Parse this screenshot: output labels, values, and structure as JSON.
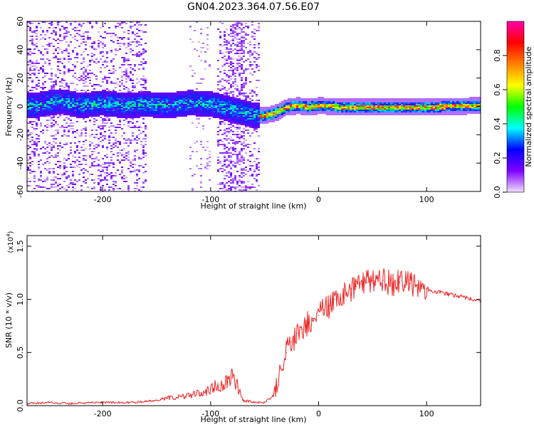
{
  "title": "GN04.2023.364.07.56.E07",
  "chart_data": [
    {
      "type": "heatmap",
      "xlabel": "Height of straight line (km)",
      "ylabel": "Frequency (Hz)",
      "xlim": [
        -270,
        150
      ],
      "ylim": [
        -60,
        60
      ],
      "xticks": [
        -200,
        -100,
        0,
        100
      ],
      "yticks": [
        -60,
        -40,
        -20,
        0,
        20,
        40,
        60
      ],
      "grid": false,
      "colorbar": {
        "label": "Normalized spectral amplitude",
        "range": [
          0,
          1
        ],
        "ticks": [
          0.0,
          0.2,
          0.4,
          0.6,
          0.8
        ],
        "colors": [
          "#f0e0ff",
          "#7f00ff",
          "#0000ff",
          "#00ffff",
          "#00ff00",
          "#ffff00",
          "#ff8000",
          "#ff0000",
          "#ff00aa"
        ]
      },
      "ridge": {
        "x": [
          -260,
          -240,
          -220,
          -200,
          -180,
          -160,
          -140,
          -120,
          -100,
          -80,
          -70,
          -60,
          -50,
          -40,
          -30,
          -20,
          -10,
          0,
          20,
          50,
          100,
          150
        ],
        "y": [
          2,
          4,
          1,
          3,
          1,
          2,
          1,
          3,
          2,
          -2,
          -4,
          -6,
          -6,
          -4,
          0,
          1,
          0,
          1,
          0,
          0,
          0,
          1
        ]
      }
    },
    {
      "type": "line",
      "xlabel": "Height of straight line (km)",
      "ylabel": "SNR (10 * v/v)",
      "multiplier": "(x10",
      "multiplier_exp": "4",
      "multiplier_close": ")",
      "xlim": [
        -270,
        150
      ],
      "ylim": [
        0,
        1.6
      ],
      "xticks": [
        -200,
        -100,
        0,
        100
      ],
      "yticks": [
        0.0,
        0.5,
        1.0,
        1.5
      ],
      "line_color": "#ee2222",
      "grid": false,
      "x": [
        -270,
        -250,
        -230,
        -210,
        -190,
        -170,
        -150,
        -140,
        -120,
        -110,
        -100,
        -90,
        -80,
        -75,
        -70,
        -60,
        -50,
        -45,
        -40,
        -35,
        -30,
        -25,
        -20,
        -15,
        -10,
        -5,
        0,
        5,
        10,
        15,
        20,
        25,
        30,
        35,
        40,
        45,
        50,
        55,
        60,
        65,
        70,
        75,
        80,
        85,
        90,
        95,
        100,
        110,
        120,
        130,
        140,
        150
      ],
      "y": [
        0.02,
        0.03,
        0.02,
        0.03,
        0.03,
        0.03,
        0.05,
        0.07,
        0.09,
        0.12,
        0.16,
        0.2,
        0.26,
        0.18,
        0.05,
        0.03,
        0.03,
        0.06,
        0.16,
        0.35,
        0.5,
        0.6,
        0.68,
        0.72,
        0.78,
        0.82,
        0.85,
        0.9,
        0.94,
        1.0,
        1.05,
        1.08,
        1.1,
        1.12,
        1.15,
        1.16,
        1.15,
        1.17,
        1.18,
        1.16,
        1.15,
        1.16,
        1.14,
        1.15,
        1.12,
        1.1,
        1.1,
        1.07,
        1.05,
        1.03,
        1.01,
        0.98
      ]
    }
  ]
}
